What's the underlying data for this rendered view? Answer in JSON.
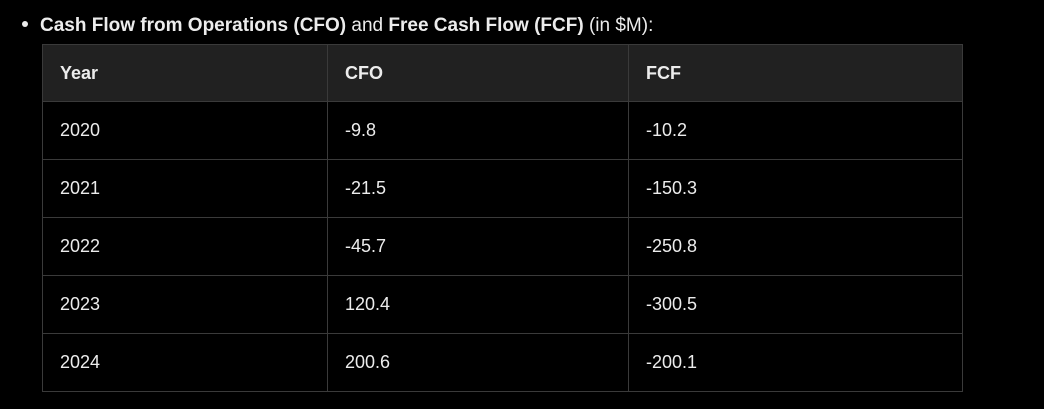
{
  "heading": {
    "part1_bold": "Cash Flow from Operations (CFO)",
    "part2": " and ",
    "part3_bold": "Free Cash Flow (FCF)",
    "part4": " (in $M):"
  },
  "table": {
    "headers": [
      "Year",
      "CFO",
      "FCF"
    ],
    "rows": [
      [
        "2020",
        "-9.8",
        "-10.2"
      ],
      [
        "2021",
        "-21.5",
        "-150.3"
      ],
      [
        "2022",
        "-45.7",
        "-250.8"
      ],
      [
        "2023",
        "120.4",
        "-300.5"
      ],
      [
        "2024",
        "200.6",
        "-200.1"
      ]
    ]
  }
}
